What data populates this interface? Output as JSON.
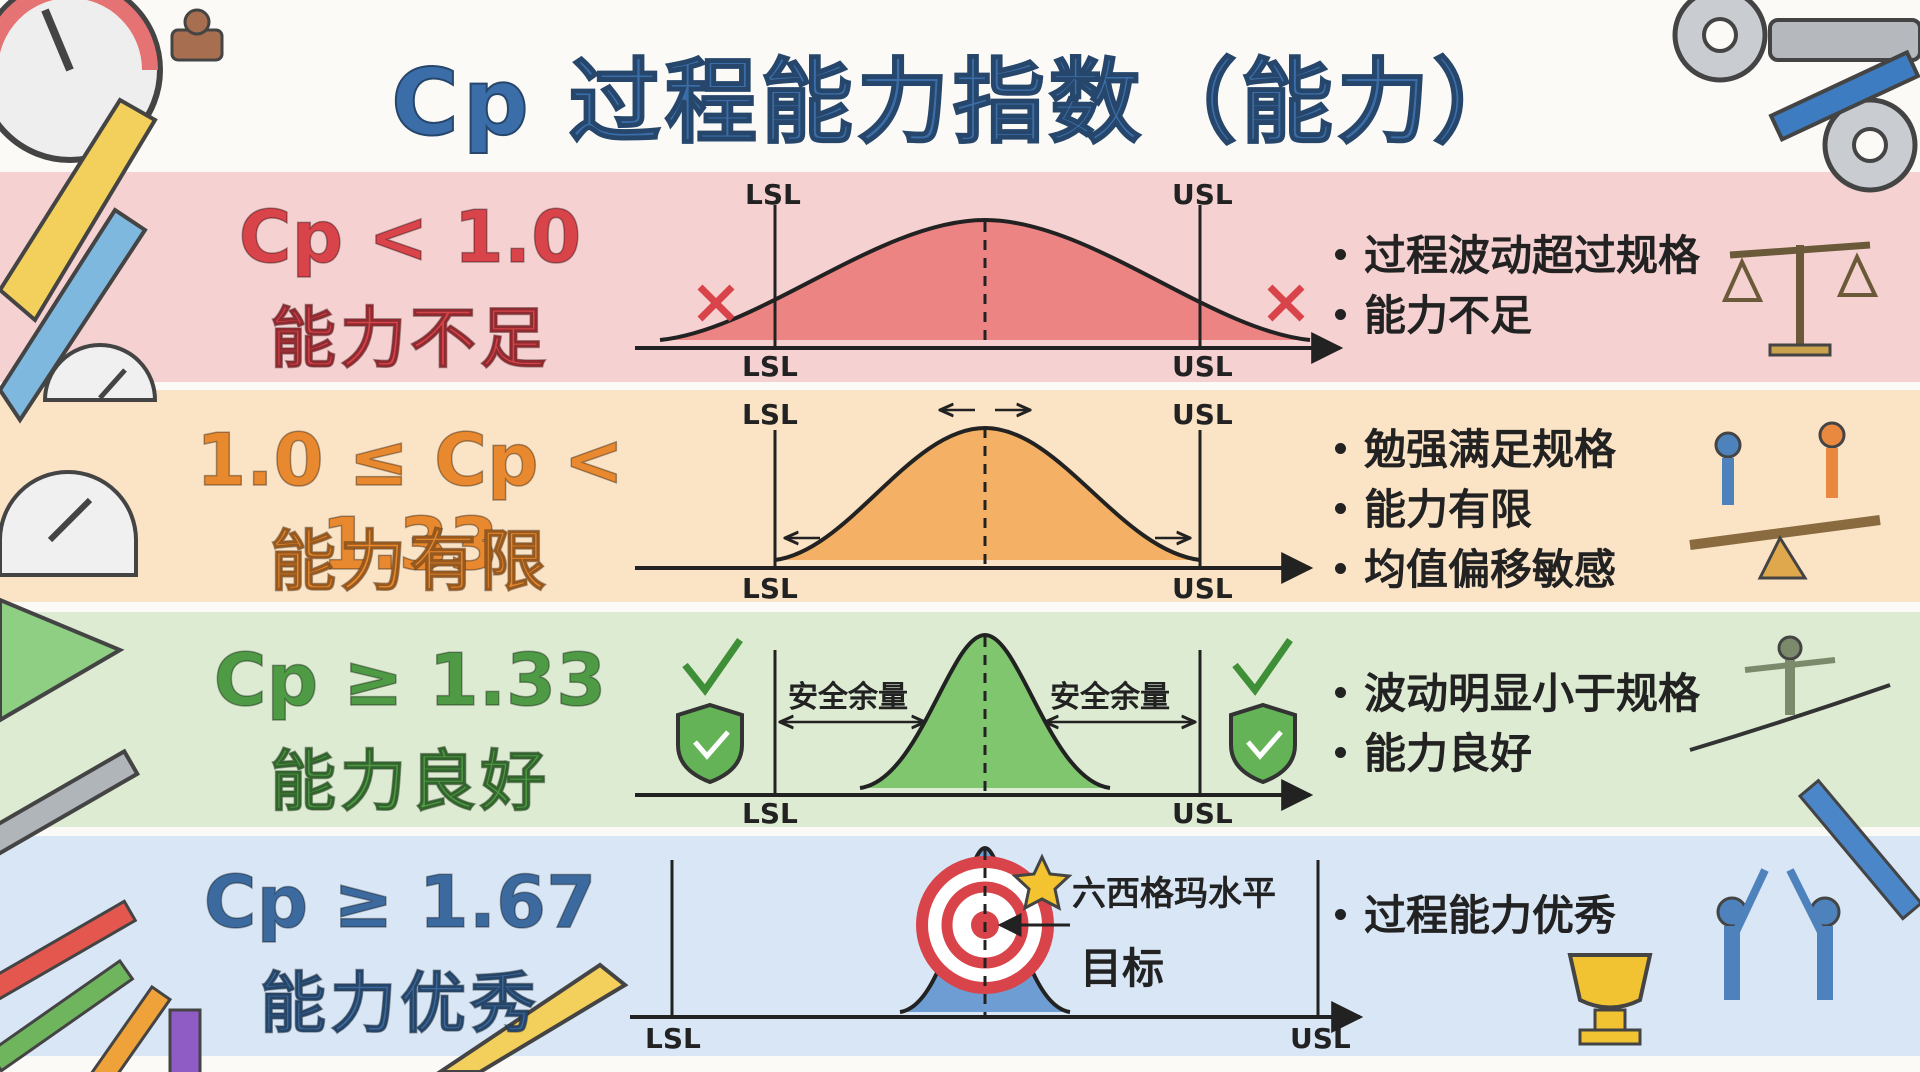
{
  "title": "Cp 过程能力指数（能力）",
  "bands": {
    "red": {
      "cond": "Cp < 1.0",
      "cap": "能力不足",
      "bullets": [
        "过程波动超过规格",
        "能力不足"
      ]
    },
    "orange": {
      "cond": "1.0 ≤ Cp < 1.33",
      "cap": "能力有限",
      "bullets": [
        "勉强满足规格",
        "能力有限",
        "均值偏移敏感"
      ]
    },
    "green": {
      "cond": "Cp ≥ 1.33",
      "cap": "能力良好",
      "bullets": [
        "波动明显小于规格",
        "能力良好"
      ],
      "margin": "安全余量"
    },
    "blue": {
      "cond": "Cp ≥ 1.67",
      "cap": "能力优秀",
      "bullets": [
        "过程能力优秀"
      ],
      "six_sigma": "六西格玛水平",
      "target": "目标"
    }
  },
  "lsl": "LSL",
  "usl": "USL",
  "colors": {
    "red": "#d9434a",
    "orange": "#e8892f",
    "green": "#4f9a45",
    "blue": "#3c6a9e"
  }
}
